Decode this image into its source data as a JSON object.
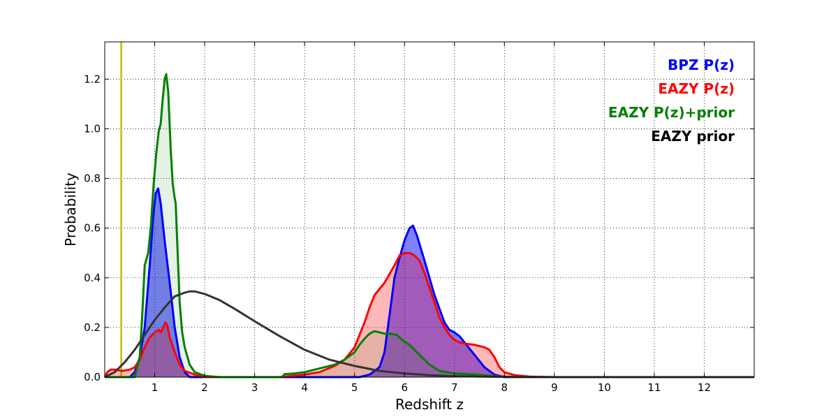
{
  "chart_data": {
    "type": "area",
    "title": "",
    "xlabel": "Redshift z",
    "ylabel": "Probability",
    "xlim": [
      0,
      13
    ],
    "ylim": [
      0,
      1.35
    ],
    "x_ticks": [
      "1",
      "2",
      "3",
      "4",
      "5",
      "6",
      "7",
      "8",
      "9",
      "10",
      "11",
      "12"
    ],
    "y_ticks": [
      "0.0",
      "0.2",
      "0.4",
      "0.6",
      "0.8",
      "1.0",
      "1.2"
    ],
    "grid": true,
    "legend_position": "top-right",
    "vertical_line": {
      "x": 0.33,
      "color": "#bfbf00"
    },
    "series": [
      {
        "name": "BPZ P(z)",
        "color": "#0000ff",
        "fill_opacity": 0.5,
        "points": [
          [
            0,
            0
          ],
          [
            0.5,
            0
          ],
          [
            0.6,
            0.02
          ],
          [
            0.7,
            0.08
          ],
          [
            0.8,
            0.2
          ],
          [
            0.9,
            0.45
          ],
          [
            0.97,
            0.65
          ],
          [
            1.02,
            0.74
          ],
          [
            1.07,
            0.76
          ],
          [
            1.12,
            0.7
          ],
          [
            1.2,
            0.55
          ],
          [
            1.3,
            0.38
          ],
          [
            1.4,
            0.2
          ],
          [
            1.5,
            0.08
          ],
          [
            1.6,
            0.02
          ],
          [
            1.7,
            0
          ],
          [
            2,
            0
          ],
          [
            5.1,
            0
          ],
          [
            5.3,
            0.01
          ],
          [
            5.5,
            0.04
          ],
          [
            5.6,
            0.1
          ],
          [
            5.7,
            0.25
          ],
          [
            5.8,
            0.4
          ],
          [
            5.9,
            0.48
          ],
          [
            6.0,
            0.55
          ],
          [
            6.1,
            0.6
          ],
          [
            6.17,
            0.61
          ],
          [
            6.25,
            0.57
          ],
          [
            6.4,
            0.47
          ],
          [
            6.6,
            0.33
          ],
          [
            6.8,
            0.22
          ],
          [
            6.9,
            0.19
          ],
          [
            7.0,
            0.18
          ],
          [
            7.1,
            0.165
          ],
          [
            7.2,
            0.14
          ],
          [
            7.4,
            0.09
          ],
          [
            7.6,
            0.04
          ],
          [
            7.8,
            0.01
          ],
          [
            8,
            0
          ],
          [
            13,
            0
          ]
        ]
      },
      {
        "name": "EAZY P(z)",
        "color": "#ff0000",
        "fill_opacity": 0.28,
        "points": [
          [
            0,
            0
          ],
          [
            0.05,
            0.02
          ],
          [
            0.12,
            0.03
          ],
          [
            0.22,
            0.03
          ],
          [
            0.35,
            0.025
          ],
          [
            0.5,
            0.03
          ],
          [
            0.6,
            0.04
          ],
          [
            0.7,
            0.07
          ],
          [
            0.8,
            0.12
          ],
          [
            0.9,
            0.16
          ],
          [
            1.0,
            0.18
          ],
          [
            1.08,
            0.19
          ],
          [
            1.12,
            0.18
          ],
          [
            1.17,
            0.2
          ],
          [
            1.21,
            0.22
          ],
          [
            1.25,
            0.21
          ],
          [
            1.3,
            0.16
          ],
          [
            1.4,
            0.1
          ],
          [
            1.5,
            0.05
          ],
          [
            1.6,
            0.025
          ],
          [
            1.8,
            0.01
          ],
          [
            2,
            0
          ],
          [
            3.5,
            0
          ],
          [
            4.0,
            0.01
          ],
          [
            4.3,
            0.02
          ],
          [
            4.6,
            0.045
          ],
          [
            4.8,
            0.07
          ],
          [
            5.0,
            0.12
          ],
          [
            5.2,
            0.22
          ],
          [
            5.3,
            0.28
          ],
          [
            5.4,
            0.33
          ],
          [
            5.6,
            0.38
          ],
          [
            5.8,
            0.45
          ],
          [
            5.9,
            0.49
          ],
          [
            6.0,
            0.5
          ],
          [
            6.1,
            0.5
          ],
          [
            6.2,
            0.49
          ],
          [
            6.3,
            0.47
          ],
          [
            6.4,
            0.42
          ],
          [
            6.5,
            0.36
          ],
          [
            6.6,
            0.3
          ],
          [
            6.7,
            0.24
          ],
          [
            6.8,
            0.2
          ],
          [
            6.9,
            0.17
          ],
          [
            7.0,
            0.15
          ],
          [
            7.1,
            0.14
          ],
          [
            7.2,
            0.135
          ],
          [
            7.4,
            0.13
          ],
          [
            7.6,
            0.12
          ],
          [
            7.7,
            0.11
          ],
          [
            7.8,
            0.08
          ],
          [
            7.9,
            0.04
          ],
          [
            8.0,
            0.02
          ],
          [
            8.2,
            0.008
          ],
          [
            8.5,
            0.002
          ],
          [
            9,
            0
          ],
          [
            13,
            0
          ]
        ]
      },
      {
        "name": "EAZY P(z)+prior",
        "color": "#008000",
        "fill_opacity": 0.1,
        "points": [
          [
            0,
            0
          ],
          [
            0.6,
            0
          ],
          [
            0.7,
            0.08
          ],
          [
            0.75,
            0.25
          ],
          [
            0.8,
            0.45
          ],
          [
            0.87,
            0.5
          ],
          [
            0.92,
            0.6
          ],
          [
            0.98,
            0.78
          ],
          [
            1.03,
            0.9
          ],
          [
            1.08,
            0.99
          ],
          [
            1.12,
            1.02
          ],
          [
            1.16,
            1.12
          ],
          [
            1.2,
            1.2
          ],
          [
            1.23,
            1.22
          ],
          [
            1.27,
            1.15
          ],
          [
            1.32,
            0.92
          ],
          [
            1.36,
            0.78
          ],
          [
            1.4,
            0.72
          ],
          [
            1.42,
            0.7
          ],
          [
            1.45,
            0.55
          ],
          [
            1.5,
            0.3
          ],
          [
            1.55,
            0.18
          ],
          [
            1.6,
            0.12
          ],
          [
            1.7,
            0.05
          ],
          [
            1.8,
            0.02
          ],
          [
            2.0,
            0.005
          ],
          [
            2.3,
            0
          ],
          [
            3.55,
            0
          ],
          [
            3.6,
            0.012
          ],
          [
            3.8,
            0.015
          ],
          [
            4.0,
            0.02
          ],
          [
            4.3,
            0.035
          ],
          [
            4.6,
            0.05
          ],
          [
            4.8,
            0.07
          ],
          [
            5.0,
            0.1
          ],
          [
            5.1,
            0.13
          ],
          [
            5.2,
            0.155
          ],
          [
            5.3,
            0.175
          ],
          [
            5.4,
            0.185
          ],
          [
            5.5,
            0.18
          ],
          [
            5.6,
            0.175
          ],
          [
            5.7,
            0.175
          ],
          [
            5.85,
            0.17
          ],
          [
            5.95,
            0.15
          ],
          [
            6.1,
            0.13
          ],
          [
            6.3,
            0.09
          ],
          [
            6.5,
            0.05
          ],
          [
            6.7,
            0.025
          ],
          [
            7.0,
            0.015
          ],
          [
            7.4,
            0.01
          ],
          [
            7.8,
            0.004
          ],
          [
            8.2,
            0
          ],
          [
            13,
            0
          ]
        ]
      },
      {
        "name": "EAZY prior",
        "color": "#333333",
        "fill_opacity": 0,
        "points": [
          [
            0,
            0
          ],
          [
            0.2,
            0.02
          ],
          [
            0.4,
            0.06
          ],
          [
            0.6,
            0.11
          ],
          [
            0.8,
            0.17
          ],
          [
            1.0,
            0.23
          ],
          [
            1.2,
            0.28
          ],
          [
            1.4,
            0.325
          ],
          [
            1.6,
            0.34
          ],
          [
            1.7,
            0.345
          ],
          [
            1.8,
            0.345
          ],
          [
            2.0,
            0.335
          ],
          [
            2.3,
            0.31
          ],
          [
            2.6,
            0.275
          ],
          [
            3.0,
            0.225
          ],
          [
            3.5,
            0.165
          ],
          [
            4.0,
            0.11
          ],
          [
            4.5,
            0.07
          ],
          [
            5.0,
            0.045
          ],
          [
            5.5,
            0.025
          ],
          [
            6.0,
            0.015
          ],
          [
            6.5,
            0.008
          ],
          [
            7.0,
            0.004
          ],
          [
            8.0,
            0.001
          ],
          [
            9,
            0
          ],
          [
            13,
            0
          ]
        ]
      }
    ]
  }
}
